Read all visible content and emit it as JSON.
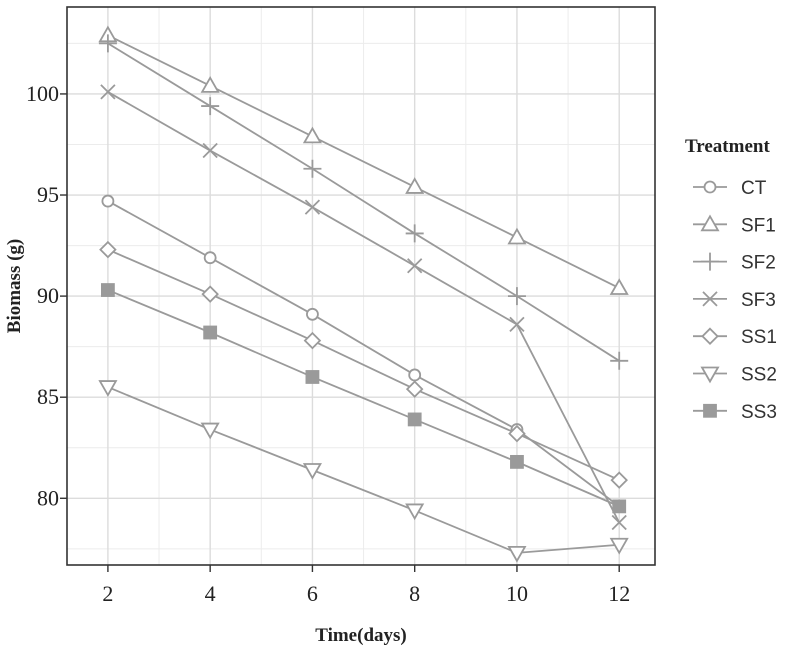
{
  "chart_data": {
    "type": "line",
    "xlabel": "Time(days)",
    "ylabel": "Biomass (g)",
    "x": [
      2,
      4,
      6,
      8,
      10,
      12
    ],
    "xticks": [
      2,
      4,
      6,
      8,
      10,
      12
    ],
    "yticks": [
      80,
      85,
      90,
      95,
      100
    ],
    "xlim": [
      1.2,
      12.7
    ],
    "ylim": [
      76.7,
      104.3
    ],
    "grid": true,
    "legend": {
      "title": "Treatment",
      "position": "right"
    },
    "line_color": "#9a9a9a",
    "series": [
      {
        "name": "CT",
        "marker": "circle",
        "values": [
          94.7,
          91.9,
          89.1,
          86.1,
          83.4,
          79.6
        ]
      },
      {
        "name": "SF1",
        "marker": "triangle-up",
        "values": [
          102.9,
          100.4,
          97.9,
          95.4,
          92.9,
          90.4
        ]
      },
      {
        "name": "SF2",
        "marker": "plus",
        "values": [
          102.5,
          99.4,
          96.3,
          93.1,
          90.0,
          86.8
        ]
      },
      {
        "name": "SF3",
        "marker": "cross",
        "values": [
          100.1,
          97.2,
          94.4,
          91.5,
          88.6,
          78.8
        ]
      },
      {
        "name": "SS1",
        "marker": "diamond",
        "values": [
          92.3,
          90.1,
          87.8,
          85.4,
          83.2,
          80.9
        ]
      },
      {
        "name": "SS2",
        "marker": "triangle-down",
        "values": [
          85.5,
          83.4,
          81.4,
          79.4,
          77.3,
          77.7
        ]
      },
      {
        "name": "SS3",
        "marker": "square",
        "values": [
          90.3,
          88.2,
          86.0,
          83.9,
          81.8,
          79.6
        ]
      }
    ]
  }
}
